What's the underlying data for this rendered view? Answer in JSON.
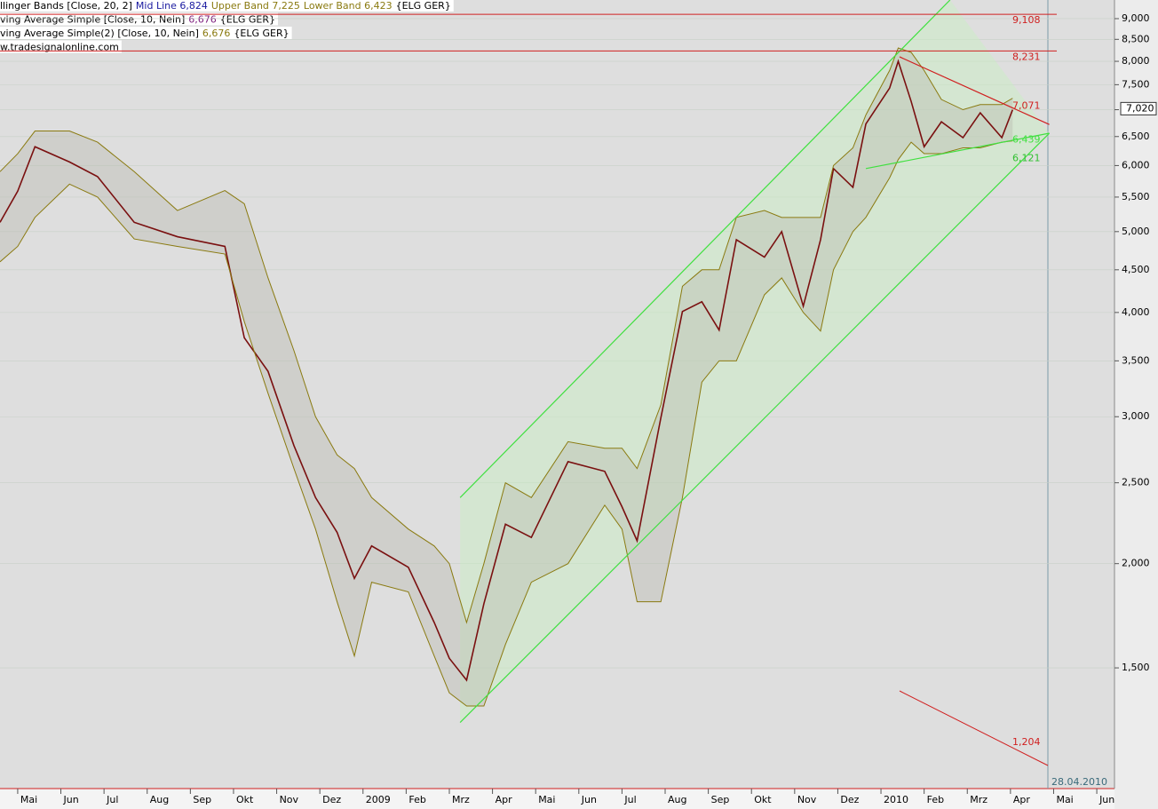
{
  "chart_data": {
    "type": "line",
    "scale": "log",
    "grid": true,
    "legend_lines": [
      [
        {
          "text": "llinger Bands [Close, 20, 2]",
          "color": "#000000"
        },
        {
          "text": "Mid Line 6,824",
          "color": "#1a1aa0"
        },
        {
          "text": "Upper Band 7,225",
          "color": "#8a7a10"
        },
        {
          "text": "Lower Band 6,423",
          "color": "#8a7a10"
        },
        {
          "text": "{ELG GER}",
          "color": "#000000"
        }
      ],
      [
        {
          "text": "ving Average Simple [Close, 10, Nein]",
          "color": "#000000"
        },
        {
          "text": "6,676",
          "color": "#7a1a7a"
        },
        {
          "text": "{ELG GER}",
          "color": "#000000"
        }
      ],
      [
        {
          "text": "ving Average Simple(2) [Close, 10, Nein]",
          "color": "#000000"
        },
        {
          "text": "6,676",
          "color": "#8a7a10"
        },
        {
          "text": "{ELG GER}",
          "color": "#000000"
        }
      ],
      [
        {
          "text": "w.tradesignalonline.com",
          "color": "#000000"
        }
      ]
    ],
    "date_label": "28.04.2010",
    "last_price": {
      "value": 7.02,
      "label": "7,020"
    },
    "x": [
      -0.41,
      0,
      0.4,
      1.2,
      1.85,
      2.7,
      3.7,
      4.8,
      5.25,
      5.8,
      6.4,
      6.9,
      7.4,
      7.8,
      8.2,
      9.05,
      9.65,
      10,
      10.4,
      10.8,
      11.3,
      11.9,
      12.75,
      13.6,
      14,
      14.35,
      14.9,
      15.4,
      15.85,
      16.25,
      16.65,
      17.3,
      17.7,
      18.2,
      18.6,
      18.9,
      19.35,
      19.65,
      20.2,
      20.4,
      20.7,
      21,
      21.4,
      21.9,
      22.3,
      22.8,
      23.05
    ],
    "series": [
      {
        "name": "Close",
        "color": "#7a1010",
        "values": [
          5.13,
          5.59,
          6.32,
          6.06,
          5.82,
          5.13,
          4.93,
          4.8,
          3.73,
          3.4,
          2.77,
          2.4,
          2.18,
          1.92,
          2.1,
          1.98,
          1.7,
          1.54,
          1.45,
          1.79,
          2.23,
          2.15,
          2.65,
          2.58,
          2.34,
          2.13,
          2.99,
          4.01,
          4.12,
          3.81,
          4.89,
          4.66,
          5.0,
          4.07,
          4.89,
          5.95,
          5.65,
          6.73,
          7.43,
          8.0,
          7.16,
          6.32,
          6.77,
          6.48,
          6.94,
          6.48,
          7.0
        ]
      },
      {
        "name": "Upper Band",
        "color": "#8a7a10",
        "values": [
          5.9,
          6.2,
          6.6,
          6.6,
          6.4,
          5.9,
          5.3,
          5.6,
          5.4,
          4.4,
          3.6,
          3.0,
          2.7,
          2.6,
          2.4,
          2.2,
          2.1,
          2.0,
          1.7,
          2.0,
          2.5,
          2.4,
          2.8,
          2.75,
          2.75,
          2.6,
          3.1,
          4.3,
          4.5,
          4.5,
          5.2,
          5.3,
          5.2,
          5.2,
          5.2,
          6.0,
          6.3,
          6.9,
          7.8,
          8.3,
          8.2,
          7.8,
          7.2,
          7.0,
          7.1,
          7.1,
          7.225
        ]
      },
      {
        "name": "Lower Band",
        "color": "#8a7a10",
        "values": [
          4.6,
          4.8,
          5.2,
          5.7,
          5.5,
          4.9,
          4.8,
          4.7,
          3.9,
          3.2,
          2.6,
          2.2,
          1.8,
          1.55,
          1.9,
          1.85,
          1.55,
          1.4,
          1.35,
          1.35,
          1.6,
          1.9,
          2.0,
          2.35,
          2.2,
          1.8,
          1.8,
          2.4,
          3.3,
          3.5,
          3.5,
          4.2,
          4.4,
          4.0,
          3.8,
          4.5,
          5.0,
          5.2,
          5.8,
          6.1,
          6.4,
          6.2,
          6.2,
          6.3,
          6.3,
          6.4,
          6.423
        ]
      }
    ],
    "xlim": [
      -0.41,
      25.41
    ],
    "xticks": [
      {
        "value": 0,
        "label": "Mai"
      },
      {
        "value": 1,
        "label": "Jun"
      },
      {
        "value": 2,
        "label": "Jul"
      },
      {
        "value": 3,
        "label": "Aug"
      },
      {
        "value": 4,
        "label": "Sep"
      },
      {
        "value": 5,
        "label": "Okt"
      },
      {
        "value": 6,
        "label": "Nov"
      },
      {
        "value": 7,
        "label": "Dez"
      },
      {
        "value": 8,
        "label": "2009"
      },
      {
        "value": 9,
        "label": "Feb"
      },
      {
        "value": 10,
        "label": "Mrz"
      },
      {
        "value": 11,
        "label": "Apr"
      },
      {
        "value": 12,
        "label": "Mai"
      },
      {
        "value": 13,
        "label": "Jun"
      },
      {
        "value": 14,
        "label": "Jul"
      },
      {
        "value": 15,
        "label": "Aug"
      },
      {
        "value": 16,
        "label": "Sep"
      },
      {
        "value": 17,
        "label": "Okt"
      },
      {
        "value": 18,
        "label": "Nov"
      },
      {
        "value": 19,
        "label": "Dez"
      },
      {
        "value": 20,
        "label": "2010"
      },
      {
        "value": 21,
        "label": "Feb"
      },
      {
        "value": 22,
        "label": "Mrz"
      },
      {
        "value": 23,
        "label": "Apr"
      },
      {
        "value": 24,
        "label": "Mai"
      },
      {
        "value": 25,
        "label": "Jun"
      }
    ],
    "ylim": [
      1.075,
      9.475
    ],
    "yticks": [
      {
        "value": 1.5,
        "label": "1,500"
      },
      {
        "value": 2,
        "label": "2,000"
      },
      {
        "value": 2.5,
        "label": "2,500"
      },
      {
        "value": 3,
        "label": "3,000"
      },
      {
        "value": 3.5,
        "label": "3,500"
      },
      {
        "value": 4,
        "label": "4,000"
      },
      {
        "value": 4.5,
        "label": "4,500"
      },
      {
        "value": 5,
        "label": "5,000"
      },
      {
        "value": 5.5,
        "label": "5,500"
      },
      {
        "value": 6,
        "label": "6,000"
      },
      {
        "value": 6.5,
        "label": "6,500"
      },
      {
        "value": 7,
        "label": "7,000"
      },
      {
        "value": 7.5,
        "label": "7,500"
      },
      {
        "value": 8,
        "label": "8,000"
      },
      {
        "value": 8.5,
        "label": "8,500"
      },
      {
        "value": 9,
        "label": "9,000"
      }
    ],
    "levels": [
      {
        "value": 9.108,
        "label": "9,108",
        "color": "#d02020"
      },
      {
        "value": 8.231,
        "label": "8,231",
        "color": "#d02020"
      }
    ],
    "trendlines": [
      {
        "x": [
          10.25,
          21.6
        ],
        "values": [
          2.4,
          9.475
        ],
        "color": "#40e040"
      },
      {
        "x": [
          10.25,
          23.9
        ],
        "values": [
          1.29,
          6.56
        ],
        "color": "#40e040"
      },
      {
        "x": [
          20.43,
          23.9
        ],
        "values": [
          8.1,
          6.72
        ],
        "color": "#d02020",
        "label": "7,071",
        "label_value": 7.071
      },
      {
        "x": [
          19.65,
          23.9
        ],
        "values": [
          5.95,
          6.56
        ],
        "color": "#40e040",
        "label": "6,439",
        "label_value": 6.439
      }
    ],
    "channel_label": {
      "value": 6.121,
      "label": "6,121",
      "color": "#30c030"
    },
    "volume_label": {
      "label": "1,204",
      "color": "#d02020"
    }
  }
}
